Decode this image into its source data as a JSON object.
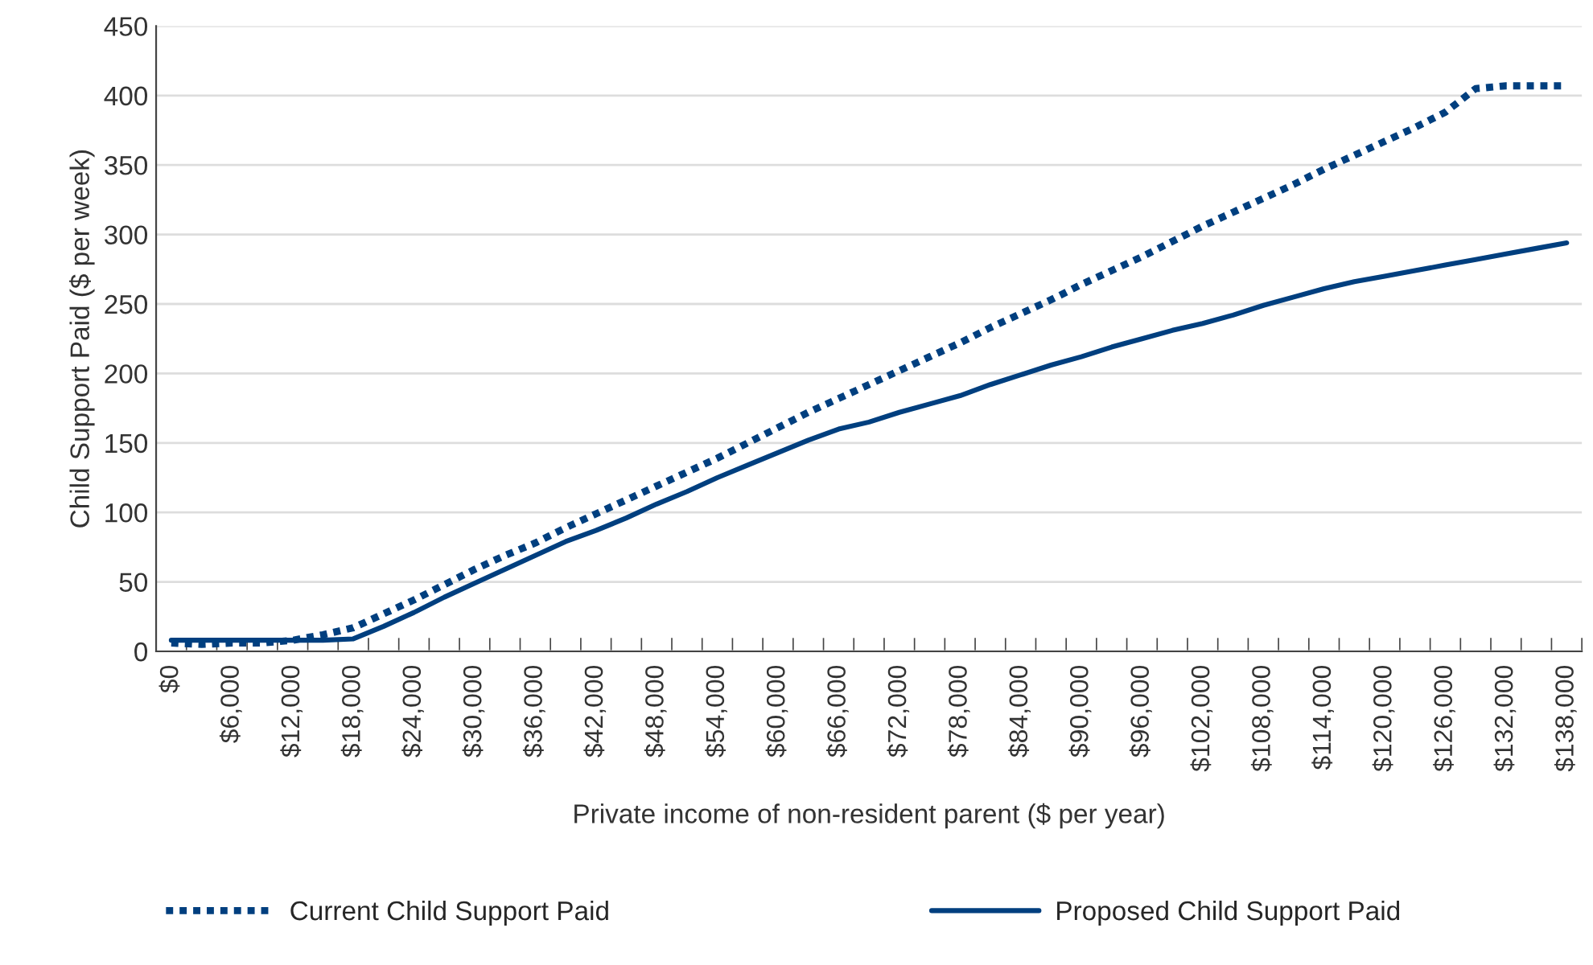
{
  "chart_data": {
    "type": "line",
    "categories": [
      "$0",
      null,
      "$6,000",
      null,
      "$12,000",
      null,
      "$18,000",
      null,
      "$24,000",
      null,
      "$30,000",
      null,
      "$36,000",
      null,
      "$42,000",
      null,
      "$48,000",
      null,
      "$54,000",
      null,
      "$60,000",
      null,
      "$66,000",
      null,
      "$72,000",
      null,
      "$78,000",
      null,
      "$84,000",
      null,
      "$90,000",
      null,
      "$96,000",
      null,
      "$102,000",
      null,
      "$108,000",
      null,
      "$114,000",
      null,
      "$120,000",
      null,
      "$126,000",
      null,
      "$132,000",
      null,
      "$138,000"
    ],
    "series": [
      {
        "name": "Current Child Support Paid",
        "color": "#003f7f",
        "line_style": "dashed",
        "values": [
          6,
          5,
          6,
          6,
          8,
          12,
          17,
          27,
          37,
          48,
          59,
          69,
          78,
          89,
          99,
          109,
          119,
          129,
          139,
          150,
          161,
          172,
          182,
          192,
          202,
          212,
          222,
          233,
          243,
          253,
          264,
          274,
          284,
          295,
          306,
          316,
          326,
          336,
          347,
          357,
          367,
          377,
          388,
          405,
          407,
          407,
          407
        ]
      },
      {
        "name": "Proposed Child Support Paid",
        "color": "#003f7f",
        "line_style": "solid",
        "values": [
          8,
          8,
          8,
          8,
          8,
          8,
          9,
          18,
          28,
          39,
          49,
          59,
          69,
          79,
          87,
          96,
          106,
          115,
          125,
          134,
          143,
          152,
          160,
          165,
          172,
          178,
          184,
          192,
          199,
          206,
          212,
          219,
          225,
          231,
          236,
          242,
          249,
          255,
          261,
          266,
          270,
          274,
          278,
          282,
          286,
          290,
          294
        ]
      }
    ],
    "xlabel": "Private income of non-resident parent ($ per year)",
    "ylabel": "Child Support Paid ($ per week)",
    "ylim": [
      0,
      450
    ],
    "yticks": [
      0,
      50,
      100,
      150,
      200,
      250,
      300,
      350,
      400,
      450
    ],
    "grid": "y",
    "legend": "bottom"
  }
}
